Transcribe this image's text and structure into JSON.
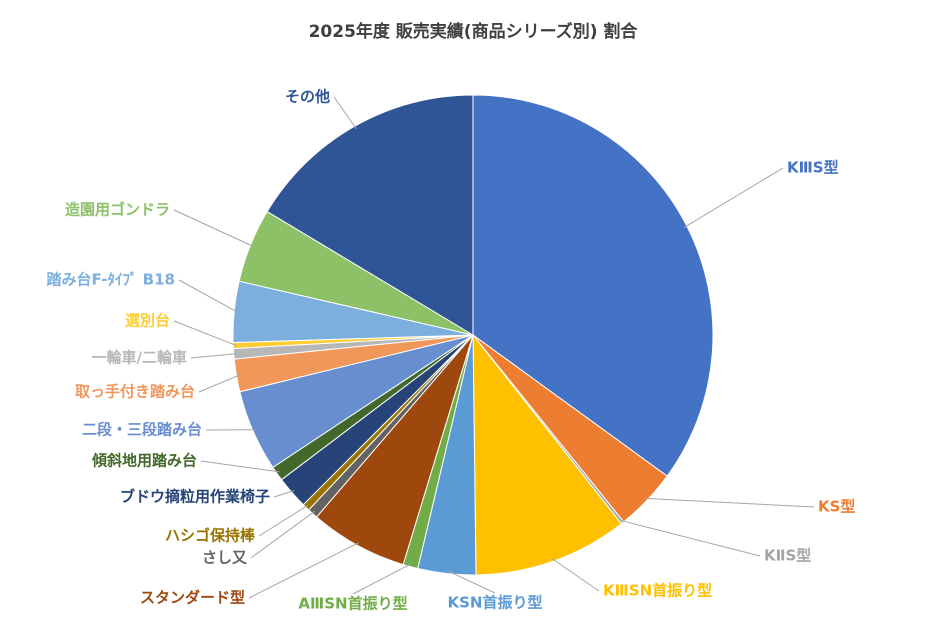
{
  "chart_data": {
    "type": "pie",
    "title": "2025年度 販売実績(商品シリーズ別) 割合",
    "categories": [
      "KⅢS型",
      "KS型",
      "KⅡS型",
      "KⅢSN首振り型",
      "KSN首振り型",
      "AⅢSN首振り型",
      "スタンダード型",
      "さし又",
      "ハシゴ保持棒",
      "ブドウ摘粒用作業椅子",
      "傾斜地用踏み台",
      "二段・三段踏み台",
      "取っ手付き踏み台",
      "一輪車/二輪車",
      "選別台",
      "踏み台F-ﾀｲﾌﾟ B18",
      "造園用ゴンドラ",
      "その他"
    ],
    "values": [
      35,
      4.2,
      0.2,
      10.4,
      3.9,
      1.0,
      6.6,
      0.7,
      0.5,
      2.2,
      1.0,
      5.5,
      2.2,
      0.7,
      0.4,
      4.1,
      5.0,
      16.4
    ],
    "colors": [
      "#4472c4",
      "#ed7d31",
      "#a5a5a5",
      "#ffc000",
      "#5b9bd5",
      "#70ad47",
      "#9e480e",
      "#636363",
      "#997300",
      "#264478",
      "#43682b",
      "#698ed0",
      "#f1975a",
      "#b7b7b7",
      "#ffcd33",
      "#7cafdd",
      "#8cc168",
      "#2f5597"
    ]
  }
}
